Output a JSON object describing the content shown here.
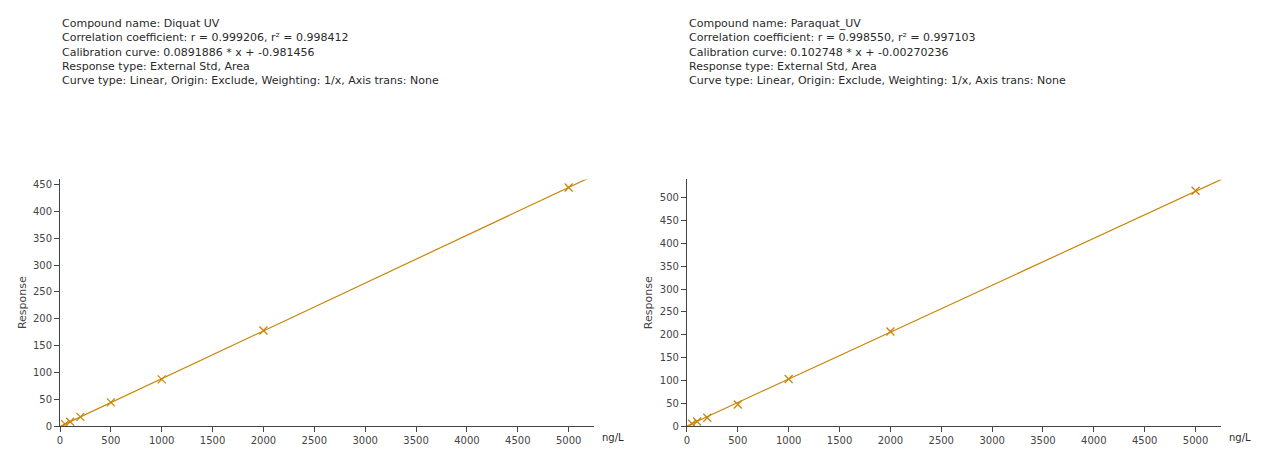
{
  "chart_data": [
    {
      "type": "scatter",
      "annotations": [
        "Compound name: Diquat UV",
        "Correlation coefficient: r = 0.999206, r² = 0.998412",
        "Calibration curve: 0.0891886 * x + -0.981456",
        "Response type: External Std, Area",
        "Curve type: Linear, Origin: Exclude, Weighting: 1/x, Axis trans: None"
      ],
      "x": [
        50,
        100,
        200,
        500,
        1000,
        2000,
        5000
      ],
      "values": [
        3.5,
        8.0,
        17.0,
        44.0,
        87.0,
        178.0,
        445.0
      ],
      "fit": {
        "slope": 0.0891886,
        "intercept": -0.981456
      },
      "xlim": [
        0,
        5250
      ],
      "ylim": [
        0,
        460
      ],
      "xticks": [
        0,
        500,
        1000,
        1500,
        2000,
        2500,
        3000,
        3500,
        4000,
        4500,
        5000
      ],
      "yticks": [
        0,
        50,
        100,
        150,
        200,
        250,
        300,
        350,
        400,
        450
      ],
      "ylabel": "Response",
      "xlabel": "ng/L",
      "color": "#C8860A",
      "marker": "x",
      "grid": false
    },
    {
      "type": "scatter",
      "annotations": [
        "Compound name: Paraquat_UV",
        "Correlation coefficient: r = 0.998550, r² = 0.997103",
        "Calibration curve: 0.102748 * x + -0.00270236",
        "Response type: External Std, Area",
        "Curve type: Linear, Origin: Exclude, Weighting: 1/x, Axis trans: None"
      ],
      "x": [
        50,
        100,
        200,
        500,
        1000,
        2000,
        5000
      ],
      "values": [
        5.0,
        10.0,
        18.0,
        47.0,
        103.0,
        207.0,
        515.0
      ],
      "fit": {
        "slope": 0.102748,
        "intercept": -0.00270236
      },
      "xlim": [
        0,
        5250
      ],
      "ylim": [
        0,
        540
      ],
      "xticks": [
        0,
        500,
        1000,
        1500,
        2000,
        2500,
        3000,
        3500,
        4000,
        4500,
        5000
      ],
      "yticks": [
        0,
        50,
        100,
        150,
        200,
        250,
        300,
        350,
        400,
        450,
        500
      ],
      "ylabel": "Response",
      "xlabel": "ng/L",
      "color": "#C8860A",
      "marker": "x",
      "grid": false
    }
  ]
}
